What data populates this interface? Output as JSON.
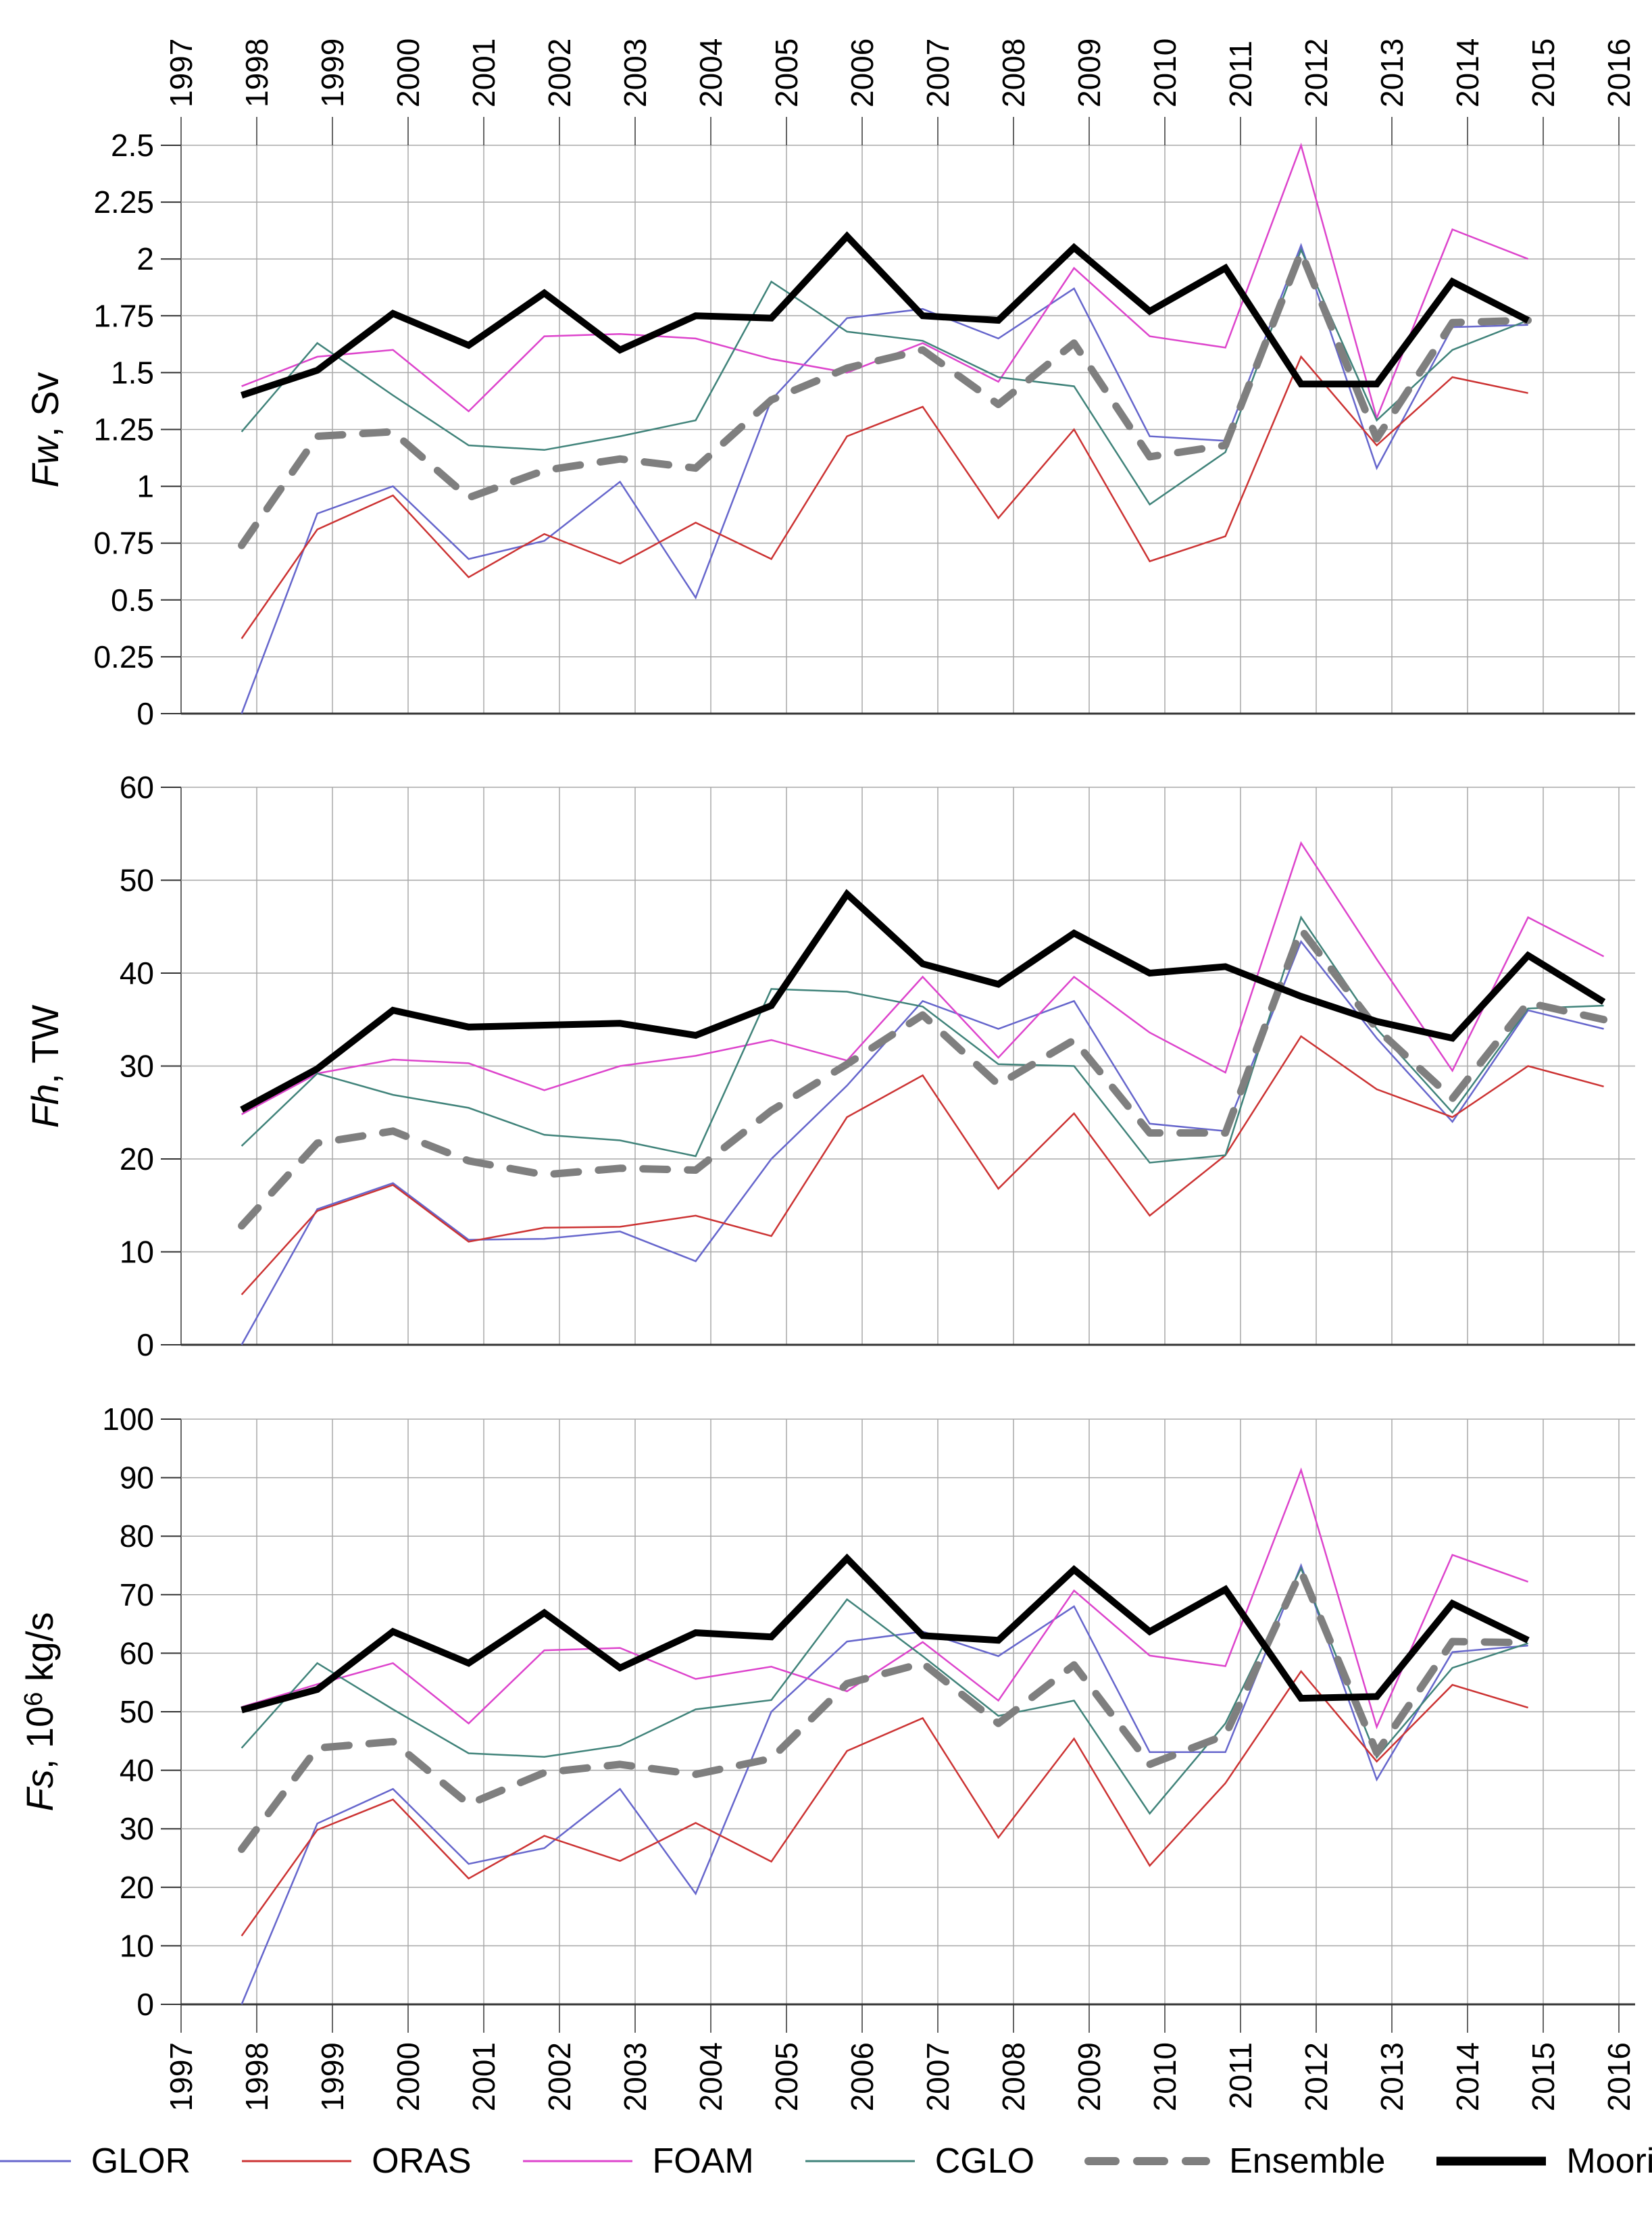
{
  "colors": {
    "GLOR": "#6666CC",
    "ORAS": "#CC3333",
    "FOAM": "#DD44CC",
    "CGLO": "#40837A",
    "Ensemble": "#7F7F7F",
    "Mooring": "#000000",
    "grid": "#A8A8A8",
    "axis": "#333333"
  },
  "x_axis": {
    "tick_labels": [
      "1997",
      "1998",
      "1999",
      "2000",
      "2001",
      "2002",
      "2003",
      "2004",
      "2005",
      "2006",
      "2007",
      "2008",
      "2009",
      "2010",
      "2011",
      "2012",
      "2013",
      "2014",
      "2015",
      "2016"
    ]
  },
  "legend": {
    "items": [
      {
        "label": "GLOR",
        "series": "GLOR",
        "style": "thin"
      },
      {
        "label": "ORAS",
        "series": "ORAS",
        "style": "thin"
      },
      {
        "label": "FOAM",
        "series": "FOAM",
        "style": "thin"
      },
      {
        "label": "CGLO",
        "series": "CGLO",
        "style": "thin"
      },
      {
        "label": "Ensemble",
        "series": "Ensemble",
        "style": "dashed"
      },
      {
        "label": "Mooring",
        "series": "Mooring",
        "style": "thick"
      }
    ]
  },
  "chart_data": [
    {
      "type": "line",
      "ylabel": {
        "var": "Fw",
        "rest": ", Sv",
        "sup": "",
        "rest2": ""
      },
      "ylim": [
        0,
        2.5
      ],
      "ytick_step": 0.25,
      "ytick_labels": [
        "2.5",
        "2.25",
        "2",
        "1.75",
        "1.5",
        "1.25",
        "1",
        "0.75",
        "0.5",
        "0.25",
        "0"
      ],
      "xlim": [
        1997,
        2016
      ],
      "grid": true,
      "x": [
        1997.8,
        1998.8,
        1999.8,
        2000.8,
        2001.8,
        2002.8,
        2003.8,
        2004.8,
        2005.8,
        2006.8,
        2007.8,
        2008.8,
        2009.8,
        2010.8,
        2011.8,
        2012.8,
        2013.8,
        2014.8
      ],
      "series": [
        {
          "name": "GLOR",
          "style": "thin",
          "values": [
            0.0,
            0.88,
            1.0,
            0.68,
            0.76,
            1.02,
            0.51,
            1.38,
            1.74,
            1.78,
            1.65,
            1.87,
            1.22,
            1.2,
            2.06,
            1.08,
            1.7,
            1.71
          ]
        },
        {
          "name": "ORAS",
          "style": "thin",
          "values": [
            0.33,
            0.81,
            0.96,
            0.6,
            0.79,
            0.66,
            0.84,
            0.68,
            1.22,
            1.35,
            0.86,
            1.25,
            0.67,
            0.78,
            1.57,
            1.18,
            1.48,
            1.41
          ]
        },
        {
          "name": "FOAM",
          "style": "thin",
          "values": [
            1.44,
            1.57,
            1.6,
            1.33,
            1.66,
            1.67,
            1.65,
            1.56,
            1.5,
            1.63,
            1.46,
            1.96,
            1.66,
            1.61,
            2.5,
            1.3,
            2.13,
            2.0
          ]
        },
        {
          "name": "CGLO",
          "style": "thin",
          "values": [
            1.24,
            1.63,
            1.4,
            1.18,
            1.16,
            1.22,
            1.29,
            1.9,
            1.68,
            1.64,
            1.48,
            1.44,
            0.92,
            1.15,
            2.04,
            1.29,
            1.6,
            1.73
          ]
        },
        {
          "name": "Ensemble",
          "style": "dashed",
          "values": [
            0.74,
            1.22,
            1.24,
            0.95,
            1.07,
            1.12,
            1.08,
            1.38,
            1.52,
            1.6,
            1.36,
            1.63,
            1.13,
            1.18,
            2.03,
            1.21,
            1.72,
            1.73
          ]
        },
        {
          "name": "Mooring",
          "style": "thick",
          "values": [
            1.4,
            1.51,
            1.76,
            1.62,
            1.85,
            1.6,
            1.75,
            1.74,
            2.1,
            1.75,
            1.73,
            2.05,
            1.77,
            1.96,
            1.45,
            1.45,
            1.9,
            1.73
          ]
        }
      ]
    },
    {
      "type": "line",
      "ylabel": {
        "var": "Fh",
        "rest": ", TW",
        "sup": "",
        "rest2": ""
      },
      "ylim": [
        0,
        60
      ],
      "ytick_step": 10,
      "ytick_labels": [
        "60",
        "50",
        "40",
        "30",
        "20",
        "10",
        "0"
      ],
      "xlim": [
        1997,
        2016
      ],
      "grid": true,
      "x": [
        1997.8,
        1998.8,
        1999.8,
        2000.8,
        2001.8,
        2002.8,
        2003.8,
        2004.8,
        2005.8,
        2006.8,
        2007.8,
        2008.8,
        2009.8,
        2010.8,
        2011.8,
        2012.8,
        2013.8,
        2014.8,
        2015.8
      ],
      "series": [
        {
          "name": "GLOR",
          "style": "thin",
          "values": [
            0.0,
            14.6,
            17.4,
            11.3,
            11.4,
            12.2,
            9.0,
            20.0,
            27.9,
            37.0,
            34.0,
            37.0,
            23.8,
            23.0,
            43.4,
            33.0,
            24.0,
            36.0,
            34.0
          ]
        },
        {
          "name": "ORAS",
          "style": "thin",
          "values": [
            5.4,
            14.4,
            17.2,
            11.1,
            12.6,
            12.7,
            13.9,
            11.7,
            24.5,
            29.0,
            16.8,
            24.9,
            13.9,
            20.4,
            33.2,
            27.5,
            24.5,
            30.0,
            27.8
          ]
        },
        {
          "name": "FOAM",
          "style": "thin",
          "values": [
            24.8,
            29.2,
            30.7,
            30.3,
            27.4,
            30.0,
            31.1,
            32.8,
            30.6,
            39.6,
            30.9,
            39.6,
            33.6,
            29.3,
            54.0,
            41.5,
            29.5,
            46.0,
            41.8
          ]
        },
        {
          "name": "CGLO",
          "style": "thin",
          "values": [
            21.4,
            29.2,
            26.9,
            25.5,
            22.6,
            22.0,
            20.3,
            38.3,
            38.0,
            36.4,
            30.2,
            30.0,
            19.6,
            20.4,
            46.0,
            34.0,
            25.0,
            36.2,
            36.5
          ]
        },
        {
          "name": "Ensemble",
          "style": "dashed",
          "values": [
            12.8,
            21.7,
            23.0,
            19.8,
            18.3,
            19.0,
            18.8,
            25.2,
            30.2,
            35.5,
            28.0,
            32.8,
            22.8,
            22.8,
            44.7,
            34.0,
            26.5,
            36.8,
            35.0
          ]
        },
        {
          "name": "Mooring",
          "style": "thick",
          "values": [
            25.3,
            29.7,
            36.0,
            34.2,
            34.4,
            34.6,
            33.3,
            36.5,
            48.5,
            41.0,
            38.8,
            44.3,
            40.0,
            40.7,
            37.5,
            34.8,
            33.0,
            41.9,
            36.9
          ]
        }
      ]
    },
    {
      "type": "line",
      "ylabel": {
        "var": "Fs",
        "rest": ", 10",
        "sup": "6",
        "rest2": " kg/s"
      },
      "ylim": [
        0,
        100
      ],
      "ytick_step": 10,
      "ytick_labels": [
        "100",
        "90",
        "80",
        "70",
        "60",
        "50",
        "40",
        "30",
        "20",
        "10",
        "0"
      ],
      "xlim": [
        1997,
        2016
      ],
      "grid": true,
      "x": [
        1997.8,
        1998.8,
        1999.8,
        2000.8,
        2001.8,
        2002.8,
        2003.8,
        2004.8,
        2005.8,
        2006.8,
        2007.8,
        2008.8,
        2009.8,
        2010.8,
        2011.8,
        2012.8,
        2013.8,
        2014.8
      ],
      "series": [
        {
          "name": "GLOR",
          "style": "thin",
          "values": [
            0.0,
            30.9,
            36.8,
            24.0,
            26.7,
            36.8,
            18.9,
            50.0,
            62.0,
            63.7,
            59.5,
            68.0,
            43.1,
            43.1,
            75.0,
            38.4,
            60.2,
            61.3
          ]
        },
        {
          "name": "ORAS",
          "style": "thin",
          "values": [
            11.7,
            29.8,
            35.0,
            21.5,
            28.8,
            24.5,
            31.0,
            24.4,
            43.3,
            48.9,
            28.5,
            45.4,
            23.7,
            37.8,
            56.9,
            41.5,
            54.6,
            50.7
          ]
        },
        {
          "name": "FOAM",
          "style": "thin",
          "values": [
            50.8,
            54.7,
            58.3,
            48.0,
            60.5,
            60.9,
            55.6,
            57.7,
            53.5,
            61.9,
            51.9,
            70.7,
            59.6,
            57.8,
            91.3,
            47.4,
            76.8,
            72.2
          ]
        },
        {
          "name": "CGLO",
          "style": "thin",
          "values": [
            43.8,
            58.3,
            50.4,
            42.9,
            42.3,
            44.2,
            50.4,
            52.0,
            69.2,
            59.5,
            49.3,
            51.9,
            32.6,
            48.0,
            74.5,
            42.2,
            57.5,
            61.7
          ]
        },
        {
          "name": "Ensemble",
          "style": "dashed",
          "values": [
            26.5,
            43.8,
            44.9,
            34.2,
            39.6,
            41.0,
            39.3,
            42.0,
            54.8,
            58.3,
            48.0,
            58.0,
            41.0,
            46.0,
            74.0,
            43.0,
            62.0,
            61.8
          ]
        },
        {
          "name": "Mooring",
          "style": "thick",
          "values": [
            50.3,
            53.8,
            63.7,
            58.3,
            66.9,
            57.5,
            63.5,
            62.8,
            76.2,
            63.0,
            62.2,
            74.3,
            63.7,
            70.9,
            52.3,
            52.6,
            68.5,
            62.2
          ]
        }
      ]
    }
  ]
}
